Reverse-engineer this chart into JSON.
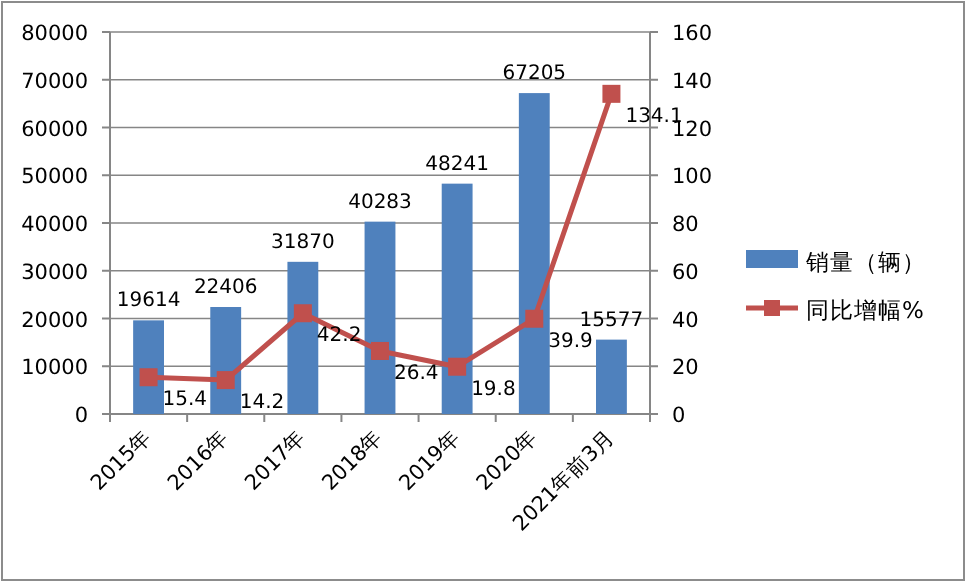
{
  "chart_data": {
    "type": "bar",
    "categories": [
      "2015年",
      "2016年",
      "2017年",
      "2018年",
      "2019年",
      "2020年",
      "2021年前3月"
    ],
    "series": [
      {
        "name": "销量（辆）",
        "color": "#4f81bd",
        "values": [
          19614,
          22406,
          31870,
          40283,
          48241,
          67205,
          15577
        ]
      },
      {
        "name": "同比增幅%",
        "type": "line",
        "axis": "y2",
        "color": "#c0504d",
        "values": [
          15.4,
          14.2,
          42.2,
          26.4,
          19.8,
          39.9,
          134.1
        ]
      }
    ],
    "ylim": [
      0,
      80000
    ],
    "yticks": [
      0,
      10000,
      20000,
      30000,
      40000,
      50000,
      60000,
      70000,
      80000
    ],
    "y2lim": [
      0,
      160
    ],
    "y2ticks": [
      0,
      20,
      40,
      60,
      80,
      100,
      120,
      140,
      160
    ],
    "grid": "y",
    "legend": "right",
    "marker": "square",
    "data_labels": true
  }
}
